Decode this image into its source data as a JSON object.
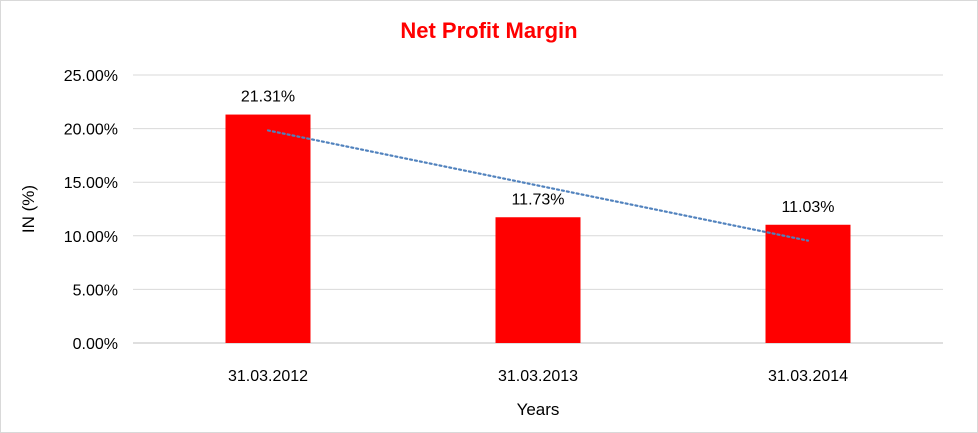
{
  "chart_data": {
    "type": "bar",
    "title": "Net Profit Margin",
    "xlabel": "Years",
    "ylabel": "IN (%)",
    "categories": [
      "31.03.2012",
      "31.03.2013",
      "31.03.2014"
    ],
    "values": [
      21.31,
      11.73,
      11.03
    ],
    "data_labels": [
      "21.31%",
      "11.73%",
      "11.03%"
    ],
    "ylim": [
      0,
      25
    ],
    "yticks": [
      0,
      5,
      10,
      15,
      20,
      25
    ],
    "ytick_labels": [
      "0.00%",
      "5.00%",
      "10.00%",
      "15.00%",
      "20.00%",
      "25.00%"
    ],
    "trendline": {
      "type": "linear",
      "style": "dotted",
      "color": "#4f81bd"
    },
    "bar_color": "#ff0000",
    "title_color": "#ff0000",
    "grid": true,
    "legend": false
  }
}
